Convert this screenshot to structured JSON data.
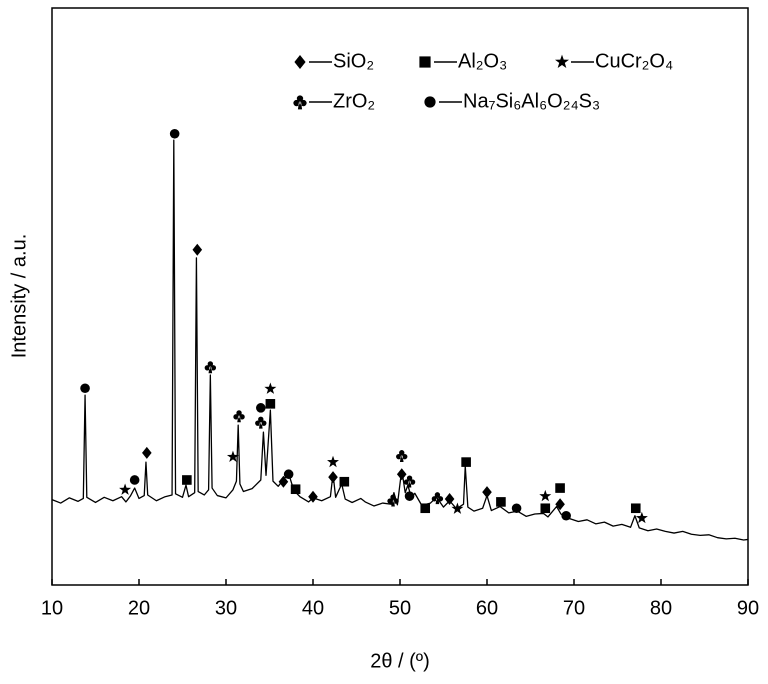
{
  "chart_data": {
    "type": "line",
    "x_label": "2θ / (º)",
    "y_label": "Intensity / a.u.",
    "xlim": [
      10,
      90
    ],
    "xticks": [
      10,
      20,
      30,
      40,
      50,
      60,
      70,
      80,
      90
    ],
    "ylim": [
      0,
      100
    ],
    "legend": "upper right",
    "x": [
      10,
      11,
      12,
      13,
      13.6,
      13.8,
      14.0,
      15,
      16,
      17,
      18,
      18.5,
      19,
      19.5,
      20,
      20.6,
      20.8,
      21.0,
      22,
      23,
      23.8,
      24.0,
      24.2,
      25,
      25.4,
      25.7,
      26.4,
      26.6,
      26.8,
      27.5,
      28.0,
      28.2,
      28.4,
      29,
      30,
      30.8,
      31.2,
      31.4,
      31.6,
      32,
      33,
      34.0,
      34.3,
      34.6,
      35.1,
      35.4,
      36,
      36.5,
      37.2,
      37.8,
      38.5,
      39.5,
      40,
      41,
      42,
      42.3,
      42.6,
      43.3,
      43.7,
      44.5,
      45.5,
      46,
      47,
      48,
      49,
      49.3,
      49.7,
      50.2,
      50.6,
      50.9,
      51.3,
      51.7,
      52.5,
      53.5,
      54.2,
      55,
      55.7,
      56.5,
      57.3,
      57.5,
      57.8,
      58.5,
      59.5,
      60,
      60.5,
      61.5,
      62.5,
      63.5,
      64.5,
      65.5,
      66.5,
      67,
      68,
      68.5,
      69.5,
      70.5,
      71.5,
      72.5,
      73.5,
      74.5,
      75.5,
      76.5,
      77,
      77.5,
      78.5,
      79.5,
      80.5,
      81.5,
      82.5,
      83.5,
      84.5,
      85.5,
      86.5,
      87.5,
      88.5,
      89.5,
      90
    ],
    "values": [
      14.8,
      14.2,
      15.1,
      14.5,
      15,
      32.9,
      15.2,
      14.3,
      15.2,
      14.6,
      15.3,
      14.4,
      15.4,
      16.8,
      15.0,
      15.5,
      21.3,
      15.6,
      14.6,
      15.3,
      15.6,
      77.1,
      15.8,
      15.2,
      17.3,
      15.3,
      16,
      56.7,
      16.2,
      15.6,
      16.5,
      36.4,
      16.8,
      15.5,
      15.1,
      16.5,
      18,
      27.7,
      17.5,
      16.2,
      16.7,
      18.2,
      26.5,
      19.0,
      30.3,
      18,
      17.1,
      18.1,
      19.3,
      16.4,
      15.3,
      14.4,
      15.1,
      14.6,
      15.3,
      19.3,
      15.2,
      17.5,
      14.9,
      14.3,
      15,
      14.4,
      13.7,
      14.2,
      14,
      16.0,
      13.9,
      20,
      16,
      17.3,
      15.2,
      15.9,
      13.8,
      14.2,
      15.2,
      13.5,
      14.6,
      13.2,
      14,
      20.6,
      13.5,
      12.8,
      13.3,
      15.5,
      12.9,
      13.6,
      12.5,
      12.8,
      11.9,
      12.3,
      12.4,
      11.8,
      13.6,
      12.3,
      11.5,
      11.0,
      11.3,
      10.6,
      10.9,
      10.2,
      10.5,
      10.0,
      12.0,
      9.9,
      9.4,
      9.7,
      9.3,
      9.0,
      9.3,
      8.8,
      8.6,
      8.7,
      8.2,
      8.0,
      8.1,
      7.8,
      7.9
    ],
    "color": "#000000",
    "phases": [
      {
        "name": "SiO₂",
        "symbol": "diamond",
        "x": [
          20.9,
          26.7,
          36.6,
          40.0,
          42.3,
          50.2,
          55.7,
          60.0,
          68.4
        ],
        "y": [
          22.9,
          58.1,
          17.9,
          15.3,
          18.7,
          19.2,
          14.9,
          16.1,
          14.0
        ]
      },
      {
        "name": "Al₂O₃",
        "symbol": "square",
        "x": [
          25.5,
          35.1,
          38.0,
          43.6,
          52.9,
          57.6,
          61.6,
          66.7,
          68.4,
          77.1
        ],
        "y": [
          18.2,
          31.4,
          16.6,
          17.9,
          13.3,
          21.3,
          14.4,
          13.3,
          16.8,
          13.3
        ]
      },
      {
        "name": "CuCr₂O₄",
        "symbol": "star",
        "x": [
          18.4,
          30.8,
          35.1,
          42.3,
          56.6,
          66.7,
          77.8
        ],
        "y": [
          16.5,
          22.2,
          34.0,
          21.3,
          13.2,
          15.4,
          11.6
        ]
      },
      {
        "name": "ZrO₂",
        "symbol": "club",
        "x": [
          28.2,
          31.5,
          34.0,
          49.2,
          50.2,
          51.1,
          54.3
        ],
        "y": [
          37.8,
          29.3,
          28.2,
          14.7,
          22.4,
          18.0,
          15.1
        ]
      },
      {
        "name": "Na₇Si₆Al₆O₂₄S₃",
        "symbol": "circle",
        "x": [
          13.8,
          19.5,
          24.1,
          34.0,
          37.2,
          51.1,
          63.4,
          69.1
        ],
        "y": [
          34.1,
          18.2,
          78.2,
          30.7,
          19.2,
          15.4,
          13.3,
          12.0
        ]
      }
    ]
  }
}
